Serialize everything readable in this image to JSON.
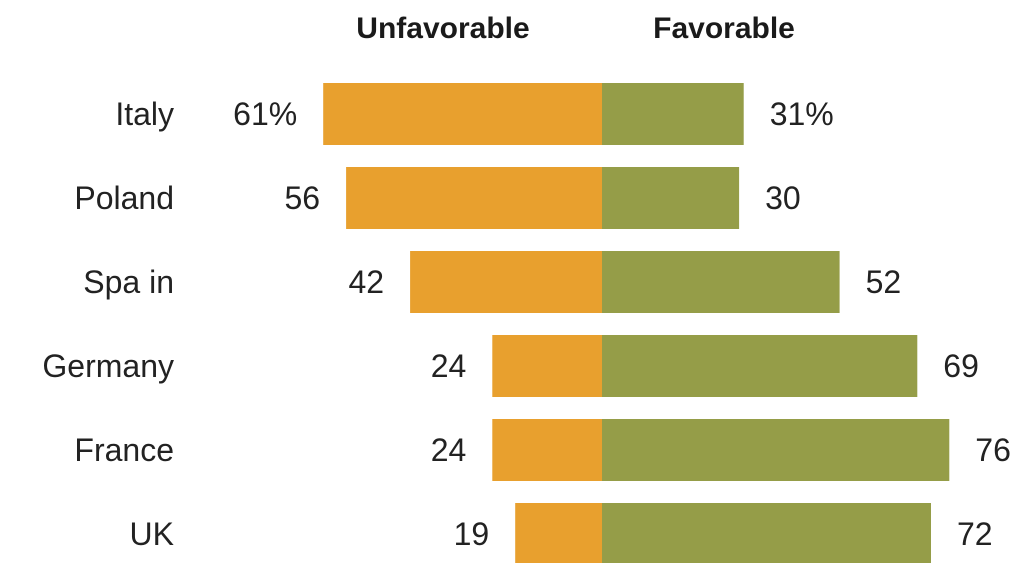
{
  "chart_data": {
    "type": "bar",
    "orientation": "horizontal-diverging",
    "categories": [
      "Italy",
      "Poland",
      "Spain",
      "Germany",
      "France",
      "UK"
    ],
    "series": [
      {
        "name": "Unfavorable",
        "values": [
          61,
          56,
          42,
          24,
          24,
          19
        ],
        "labels": [
          "61%",
          "56",
          "42",
          "24",
          "24",
          "19"
        ],
        "color": "#E8A02E"
      },
      {
        "name": "Favorable",
        "values": [
          31,
          30,
          52,
          69,
          76,
          72
        ],
        "labels": [
          "31%",
          "30",
          "52",
          "69",
          "76",
          "72"
        ],
        "color": "#959D48"
      }
    ],
    "headers": {
      "unfavorable": "Unfavorable",
      "favorable": "Favorable"
    },
    "category_labels": {
      "Spain": "Spa in"
    },
    "axis_hidden": true,
    "grid": false,
    "legend": "top"
  }
}
